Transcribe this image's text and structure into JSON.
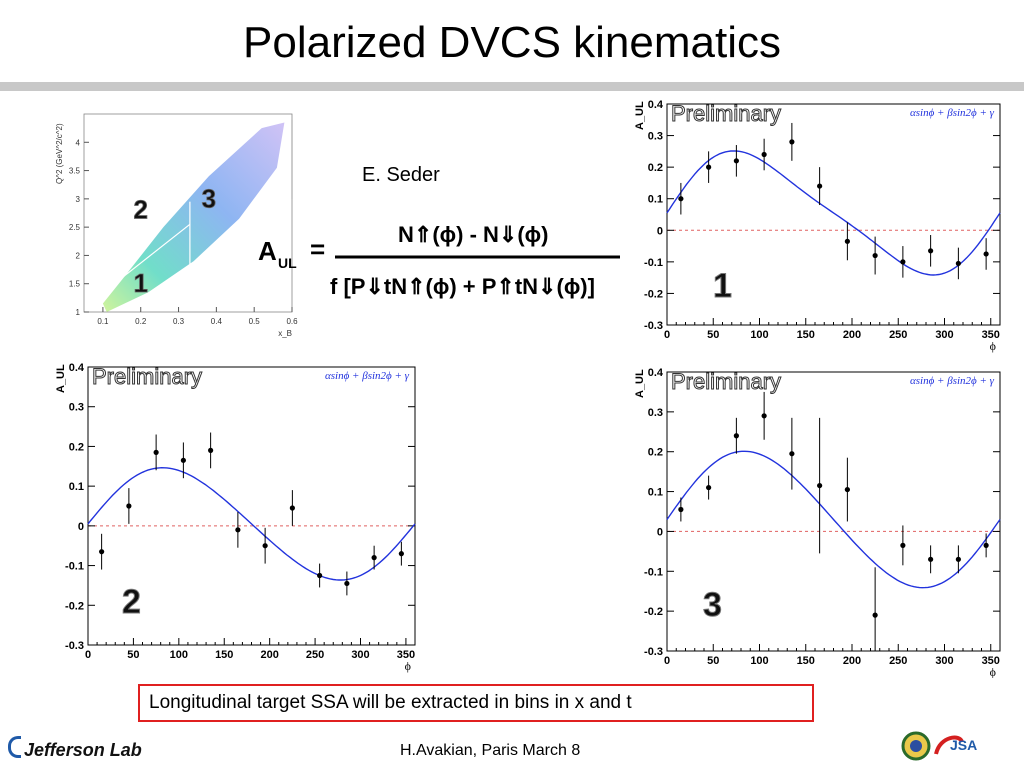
{
  "slide": {
    "title": "Polarized DVCS kinematics",
    "author": "E. Seder",
    "note": "Longitudinal target SSA will be extracted in bins in x and t",
    "footer": "H.Avakian, Paris March 8",
    "logo_text": "Jefferson Lab"
  },
  "formula": {
    "lhs": "A",
    "lhs_sub": "UL",
    "equals": "=",
    "numerator": "N⇑(ϕ)  -  N⇓(ϕ)",
    "denominator": "f [P⇓tN⇑(ϕ)  +  P⇑tN⇓(ϕ)]"
  },
  "colors": {
    "fit": "#2233dd",
    "points": "#000000",
    "zero_line": "#e06060",
    "formula_text": "#000000",
    "badge_red": "#d42020",
    "badge_blue": "#1f5aa8"
  },
  "chart_data": [
    {
      "type": "scatter",
      "panel": "kinematics",
      "xlabel": "x_B",
      "ylabel": "Q^2 (GeV^2/c^2)",
      "xlim": [
        0.05,
        0.6
      ],
      "ylim": [
        1,
        4.5
      ],
      "xticks": [
        "0.1",
        "0.2",
        "0.3",
        "0.4",
        "0.5",
        "0.6"
      ],
      "yticks": [
        "1",
        "1.5",
        "2",
        "2.5",
        "3",
        "3.5",
        "4"
      ],
      "bin_labels": [
        {
          "label": "1",
          "x": 0.2,
          "y": 1.35
        },
        {
          "label": "2",
          "x": 0.2,
          "y": 2.65
        },
        {
          "label": "3",
          "x": 0.38,
          "y": 2.85
        }
      ],
      "bin_edges": {
        "x_cut": 0.33
      }
    },
    {
      "type": "scatter",
      "panel": "bin1",
      "bin_label": "1",
      "preliminary": "Preliminary",
      "fit_label": "αsinϕ + βsin2ϕ + γ",
      "xlabel": "ϕ",
      "ylabel": "A_UL",
      "xlim": [
        0,
        360
      ],
      "ylim": [
        -0.3,
        0.4
      ],
      "xticks": [
        "0",
        "50",
        "100",
        "150",
        "200",
        "250",
        "300",
        "350"
      ],
      "yticks": [
        "-0.3",
        "-0.2",
        "-0.1",
        "0",
        "0.1",
        "0.2",
        "0.3",
        "0.4"
      ],
      "points": [
        {
          "x": 15,
          "y": 0.1,
          "err": 0.05
        },
        {
          "x": 45,
          "y": 0.2,
          "err": 0.05
        },
        {
          "x": 75,
          "y": 0.22,
          "err": 0.05
        },
        {
          "x": 105,
          "y": 0.24,
          "err": 0.05
        },
        {
          "x": 135,
          "y": 0.28,
          "err": 0.06
        },
        {
          "x": 165,
          "y": 0.14,
          "err": 0.06
        },
        {
          "x": 195,
          "y": -0.035,
          "err": 0.06
        },
        {
          "x": 225,
          "y": -0.08,
          "err": 0.06
        },
        {
          "x": 255,
          "y": -0.1,
          "err": 0.05
        },
        {
          "x": 285,
          "y": -0.065,
          "err": 0.05
        },
        {
          "x": 315,
          "y": -0.105,
          "err": 0.05
        },
        {
          "x": 345,
          "y": -0.075,
          "err": 0.05
        }
      ],
      "fit": {
        "alpha": 0.185,
        "beta": 0.035,
        "gamma": 0.055
      }
    },
    {
      "type": "scatter",
      "panel": "bin2",
      "bin_label": "2",
      "preliminary": "Preliminary",
      "fit_label": "αsinϕ + βsin2ϕ + γ",
      "xlabel": "ϕ",
      "ylabel": "A_UL",
      "xlim": [
        0,
        360
      ],
      "ylim": [
        -0.3,
        0.4
      ],
      "xticks": [
        "0",
        "50",
        "100",
        "150",
        "200",
        "250",
        "300",
        "350"
      ],
      "yticks": [
        "-0.3",
        "-0.2",
        "-0.1",
        "0",
        "0.1",
        "0.2",
        "0.3",
        "0.4"
      ],
      "points": [
        {
          "x": 15,
          "y": -0.065,
          "err": 0.045
        },
        {
          "x": 45,
          "y": 0.05,
          "err": 0.045
        },
        {
          "x": 75,
          "y": 0.185,
          "err": 0.045
        },
        {
          "x": 105,
          "y": 0.165,
          "err": 0.045
        },
        {
          "x": 135,
          "y": 0.19,
          "err": 0.045
        },
        {
          "x": 165,
          "y": -0.01,
          "err": 0.045
        },
        {
          "x": 195,
          "y": -0.05,
          "err": 0.045
        },
        {
          "x": 225,
          "y": 0.045,
          "err": 0.045
        },
        {
          "x": 255,
          "y": -0.125,
          "err": 0.03
        },
        {
          "x": 285,
          "y": -0.145,
          "err": 0.03
        },
        {
          "x": 315,
          "y": -0.08,
          "err": 0.03
        },
        {
          "x": 345,
          "y": -0.07,
          "err": 0.03
        }
      ],
      "fit": {
        "alpha": 0.14,
        "beta": 0.01,
        "gamma": 0.005
      }
    },
    {
      "type": "scatter",
      "panel": "bin3",
      "bin_label": "3",
      "preliminary": "Preliminary",
      "fit_label": "αsinϕ + βsin2ϕ + γ",
      "xlabel": "ϕ",
      "ylabel": "A_UL",
      "xlim": [
        0,
        360
      ],
      "ylim": [
        -0.3,
        0.4
      ],
      "xticks": [
        "0",
        "50",
        "100",
        "150",
        "200",
        "250",
        "300",
        "350"
      ],
      "yticks": [
        "-0.3",
        "-0.2",
        "-0.1",
        "0",
        "0.1",
        "0.2",
        "0.3",
        "0.4"
      ],
      "points": [
        {
          "x": 15,
          "y": 0.055,
          "err": 0.03
        },
        {
          "x": 45,
          "y": 0.11,
          "err": 0.03
        },
        {
          "x": 75,
          "y": 0.24,
          "err": 0.045
        },
        {
          "x": 105,
          "y": 0.29,
          "err": 0.06
        },
        {
          "x": 135,
          "y": 0.195,
          "err": 0.09
        },
        {
          "x": 165,
          "y": 0.115,
          "err": 0.17
        },
        {
          "x": 195,
          "y": 0.105,
          "err": 0.08
        },
        {
          "x": 225,
          "y": -0.21,
          "err": 0.12
        },
        {
          "x": 255,
          "y": -0.035,
          "err": 0.05
        },
        {
          "x": 285,
          "y": -0.07,
          "err": 0.035
        },
        {
          "x": 315,
          "y": -0.07,
          "err": 0.035
        },
        {
          "x": 345,
          "y": -0.035,
          "err": 0.03
        }
      ],
      "fit": {
        "alpha": 0.17,
        "beta": 0.01,
        "gamma": 0.03
      }
    }
  ]
}
